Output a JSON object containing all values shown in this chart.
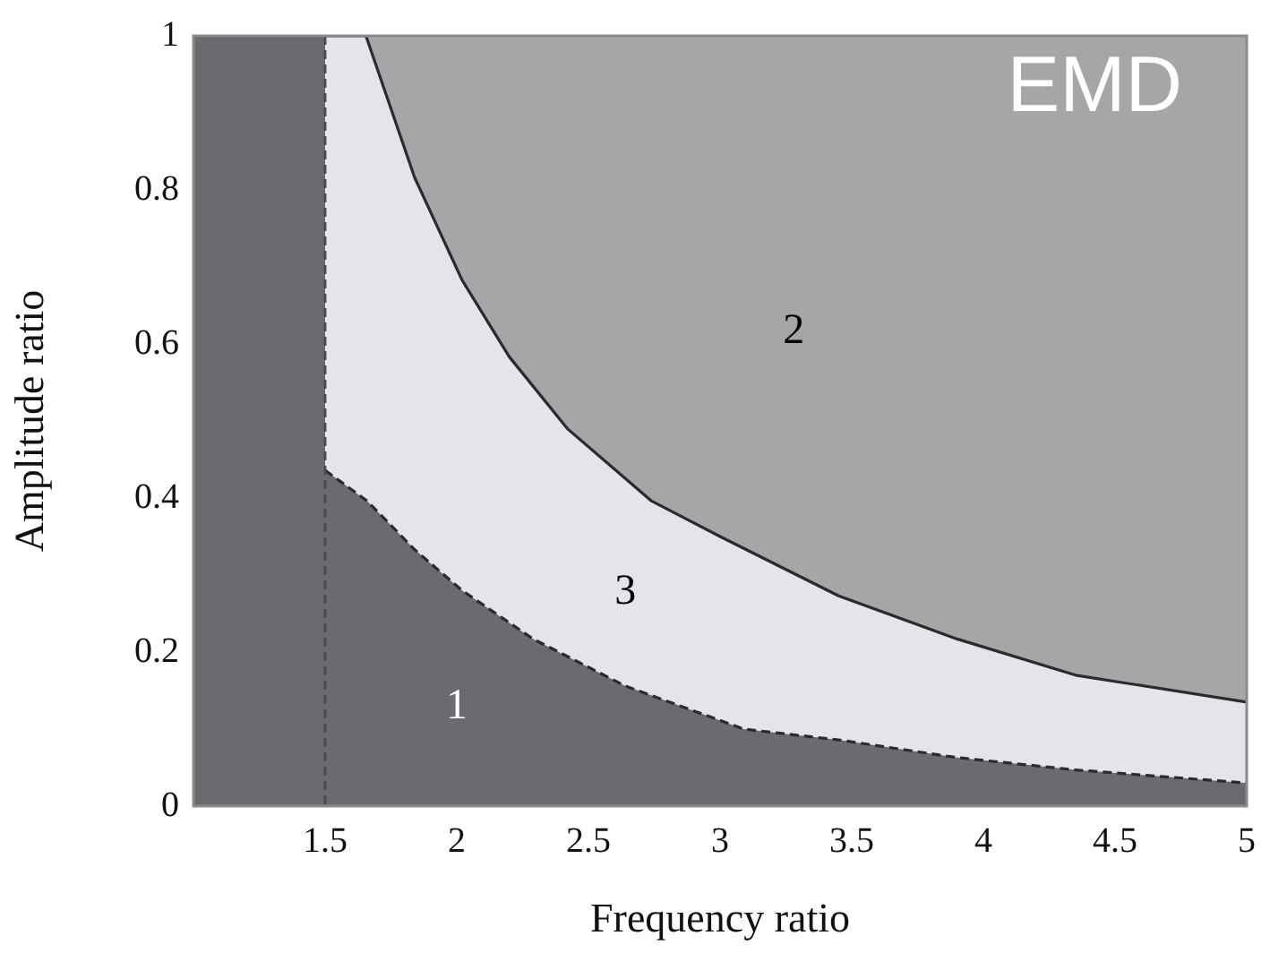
{
  "chart_data": {
    "type": "area",
    "xlabel": "Frequency ratio",
    "ylabel": "Amplitude ratio",
    "xlim": [
      1,
      5
    ],
    "xticks": [
      1.5,
      2,
      2.5,
      3,
      3.5,
      4,
      4.5,
      5
    ],
    "ylim": [
      0,
      1
    ],
    "yticks": [
      0,
      0.2,
      0.4,
      0.6,
      0.8,
      1
    ],
    "legend": false,
    "series": [
      {
        "color": "#a5a6a8",
        "line_style": "none",
        "x": [
          1.655,
          5
        ],
        "values": [
          1,
          1
        ]
      },
      {
        "color": "#e4e5e8",
        "line_style": "solid",
        "x": [
          1.5,
          1.655,
          1.84,
          2.02,
          2.2,
          2.42,
          2.74,
          3.0,
          3.45,
          3.9,
          4.35,
          5
        ],
        "values": [
          1,
          1,
          0.816,
          0.683,
          0.583,
          0.49,
          0.396,
          0.35,
          0.273,
          0.217,
          0.17,
          0.135
        ]
      },
      {
        "color": "#6a6b6e",
        "line_style": "dashed",
        "x": [
          1.5,
          1.66,
          1.84,
          2.02,
          2.29,
          2.64,
          3.09,
          3.45,
          3.9,
          4.35,
          5
        ],
        "values": [
          0.436,
          0.396,
          0.333,
          0.28,
          0.217,
          0.156,
          0.1,
          0.086,
          0.063,
          0.047,
          0.03
        ]
      }
    ],
    "bands": [
      {
        "axis": "x",
        "from": 1,
        "to": 1.5,
        "color": "#6a6b6e"
      }
    ],
    "ref_lines": [
      {
        "axis": "x",
        "value": 1.5,
        "line_style": "dashed",
        "color": "#4a4a4c"
      }
    ],
    "annotations": [
      "1",
      "3",
      "2",
      "EMD"
    ]
  }
}
